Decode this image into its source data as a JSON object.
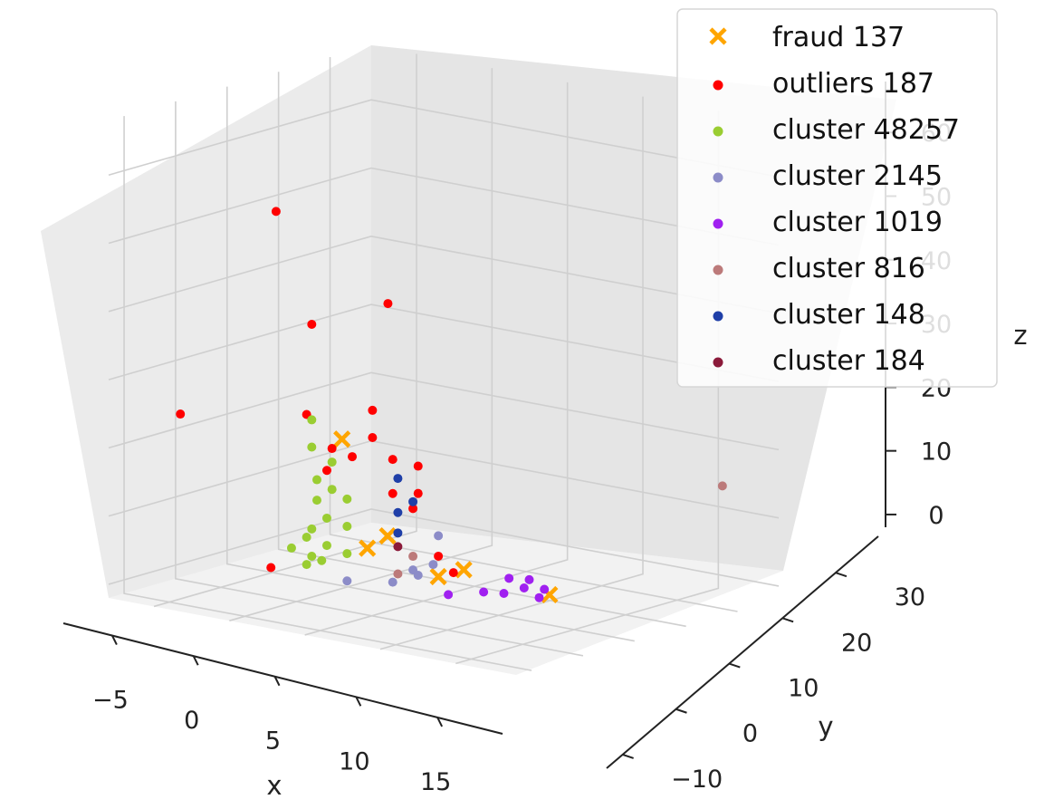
{
  "chart_data": {
    "type": "scatter",
    "projection": "3d",
    "xlabel": "x",
    "ylabel": "y",
    "zlabel": "z",
    "xlim": [
      -8,
      19
    ],
    "ylim": [
      -13,
      38
    ],
    "zlim": [
      -2,
      68
    ],
    "x_ticks": [
      "−5",
      "0",
      "5",
      "10",
      "15"
    ],
    "y_ticks": [
      "−10",
      "0",
      "10",
      "20",
      "30"
    ],
    "z_ticks": [
      "0",
      "10",
      "20",
      "30",
      "40",
      "50",
      "60"
    ],
    "grid": true,
    "legend_placement": "top-right",
    "series": [
      {
        "name": "fraud 137",
        "marker": "x",
        "color": "#ffa500",
        "points": [
          [
            2,
            3,
            22
          ],
          [
            3,
            5,
            6
          ],
          [
            4,
            6,
            8
          ],
          [
            6,
            10,
            2
          ],
          [
            7,
            12,
            3
          ],
          [
            12,
            14,
            1
          ]
        ]
      },
      {
        "name": "outliers 187",
        "color": "#ff0000",
        "points": [
          [
            -7,
            -2,
            23
          ],
          [
            -1,
            -1,
            55
          ],
          [
            0,
            3,
            38
          ],
          [
            3,
            9,
            41
          ],
          [
            -1,
            -2,
            3
          ],
          [
            0,
            2,
            25
          ],
          [
            1,
            4,
            20
          ],
          [
            2,
            5,
            19
          ],
          [
            3,
            6,
            26
          ],
          [
            4,
            7,
            14
          ],
          [
            5,
            8,
            12
          ],
          [
            5,
            9,
            14
          ],
          [
            6,
            10,
            5
          ],
          [
            7,
            10,
            3
          ],
          [
            1,
            3,
            17
          ],
          [
            5,
            9,
            18
          ],
          [
            3,
            6,
            22
          ],
          [
            4,
            7,
            19
          ]
        ]
      },
      {
        "name": "cluster 48257",
        "color": "#9acd32",
        "points": [
          [
            0,
            3,
            4
          ],
          [
            0,
            3,
            8
          ],
          [
            0,
            4,
            12
          ],
          [
            0,
            4,
            15
          ],
          [
            0,
            3,
            20
          ],
          [
            0,
            3,
            24
          ],
          [
            1,
            3,
            6
          ],
          [
            1,
            3,
            10
          ],
          [
            1,
            4,
            14
          ],
          [
            2,
            4,
            5
          ],
          [
            2,
            4,
            9
          ],
          [
            2,
            4,
            13
          ],
          [
            1,
            2,
            4
          ],
          [
            0,
            2,
            7
          ],
          [
            -1,
            2,
            5
          ],
          [
            1,
            4,
            18
          ],
          [
            0,
            2,
            3
          ]
        ]
      },
      {
        "name": "cluster 2145",
        "color": "#8c8cc8",
        "points": [
          [
            4,
            7,
            1
          ],
          [
            5,
            8,
            3
          ],
          [
            6,
            9,
            4
          ],
          [
            2,
            4,
            1
          ],
          [
            6,
            10,
            8
          ],
          [
            5,
            9,
            2
          ]
        ]
      },
      {
        "name": "cluster 1019",
        "color": "#a020f0",
        "points": [
          [
            9,
            10,
            1
          ],
          [
            10,
            11,
            1
          ],
          [
            11,
            12,
            2
          ],
          [
            12,
            12,
            1
          ],
          [
            10,
            12,
            3
          ],
          [
            7,
            9,
            0
          ],
          [
            11,
            13,
            3
          ],
          [
            12,
            13,
            2
          ]
        ]
      },
      {
        "name": "cluster 816",
        "color": "#bc7a7a",
        "points": [
          [
            4,
            8,
            2
          ],
          [
            5,
            8,
            5
          ],
          [
            18,
            30,
            16
          ]
        ]
      },
      {
        "name": "cluster 148",
        "color": "#1f3fa8",
        "points": [
          [
            4,
            8,
            8
          ],
          [
            4,
            8,
            11
          ],
          [
            5,
            8,
            13
          ],
          [
            4,
            8,
            16
          ]
        ]
      },
      {
        "name": "cluster 184",
        "color": "#8b1a3a",
        "points": [
          [
            4,
            8,
            6
          ]
        ]
      }
    ]
  }
}
